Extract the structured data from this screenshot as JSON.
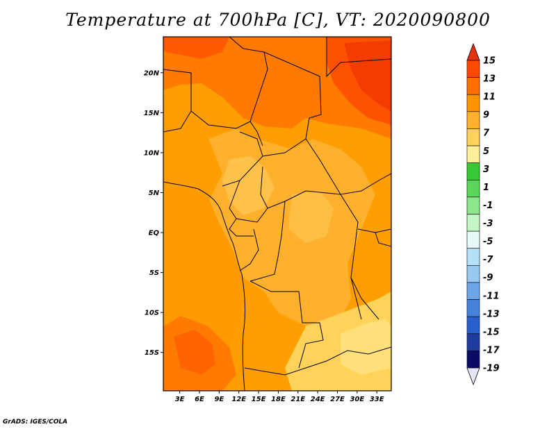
{
  "title": "Temperature at 700hPa [C], VT: 2020090800",
  "credit": "GrADS: IGES/COLA",
  "map": {
    "lat_ticks": [
      {
        "label": "20N",
        "lat": 20
      },
      {
        "label": "15N",
        "lat": 15
      },
      {
        "label": "10N",
        "lat": 10
      },
      {
        "label": "5N",
        "lat": 5
      },
      {
        "label": "EQ",
        "lat": 0
      },
      {
        "label": "5S",
        "lat": -5
      },
      {
        "label": "10S",
        "lat": -10
      },
      {
        "label": "15S",
        "lat": -15
      }
    ],
    "lon_ticks": [
      {
        "label": "3E",
        "lon": 3
      },
      {
        "label": "6E",
        "lon": 6
      },
      {
        "label": "9E",
        "lon": 9
      },
      {
        "label": "12E",
        "lon": 12
      },
      {
        "label": "15E",
        "lon": 15
      },
      {
        "label": "18E",
        "lon": 18
      },
      {
        "label": "21E",
        "lon": 21
      },
      {
        "label": "24E",
        "lon": 24
      },
      {
        "label": "27E",
        "lon": 27
      },
      {
        "label": "30E",
        "lon": 30
      },
      {
        "label": "33E",
        "lon": 33
      }
    ],
    "lon_range": [
      0.5,
      35.2
    ],
    "lat_range": [
      -19.8,
      24.5
    ]
  },
  "colorbar": {
    "labels": [
      "15",
      "13",
      "11",
      "9",
      "7",
      "5",
      "3",
      "1",
      "-1",
      "-3",
      "-5",
      "-7",
      "-9",
      "-11",
      "-13",
      "-15",
      "-17",
      "-19"
    ],
    "colors": [
      "#ff2a00",
      "#ff4a00",
      "#ff6e00",
      "#ff9400",
      "#ffb12e",
      "#ffd35a",
      "#ffee9a",
      "#37c837",
      "#5ad75a",
      "#8ce68c",
      "#c4f5c4",
      "#e6f8f8",
      "#b4e0f8",
      "#96c8f0",
      "#6ea5e6",
      "#4682dc",
      "#285fcd",
      "#1e3ca0",
      "#0a0a64"
    ],
    "overflow_top": "#e63214",
    "underflow_bottom": "#e6e6fa"
  }
}
